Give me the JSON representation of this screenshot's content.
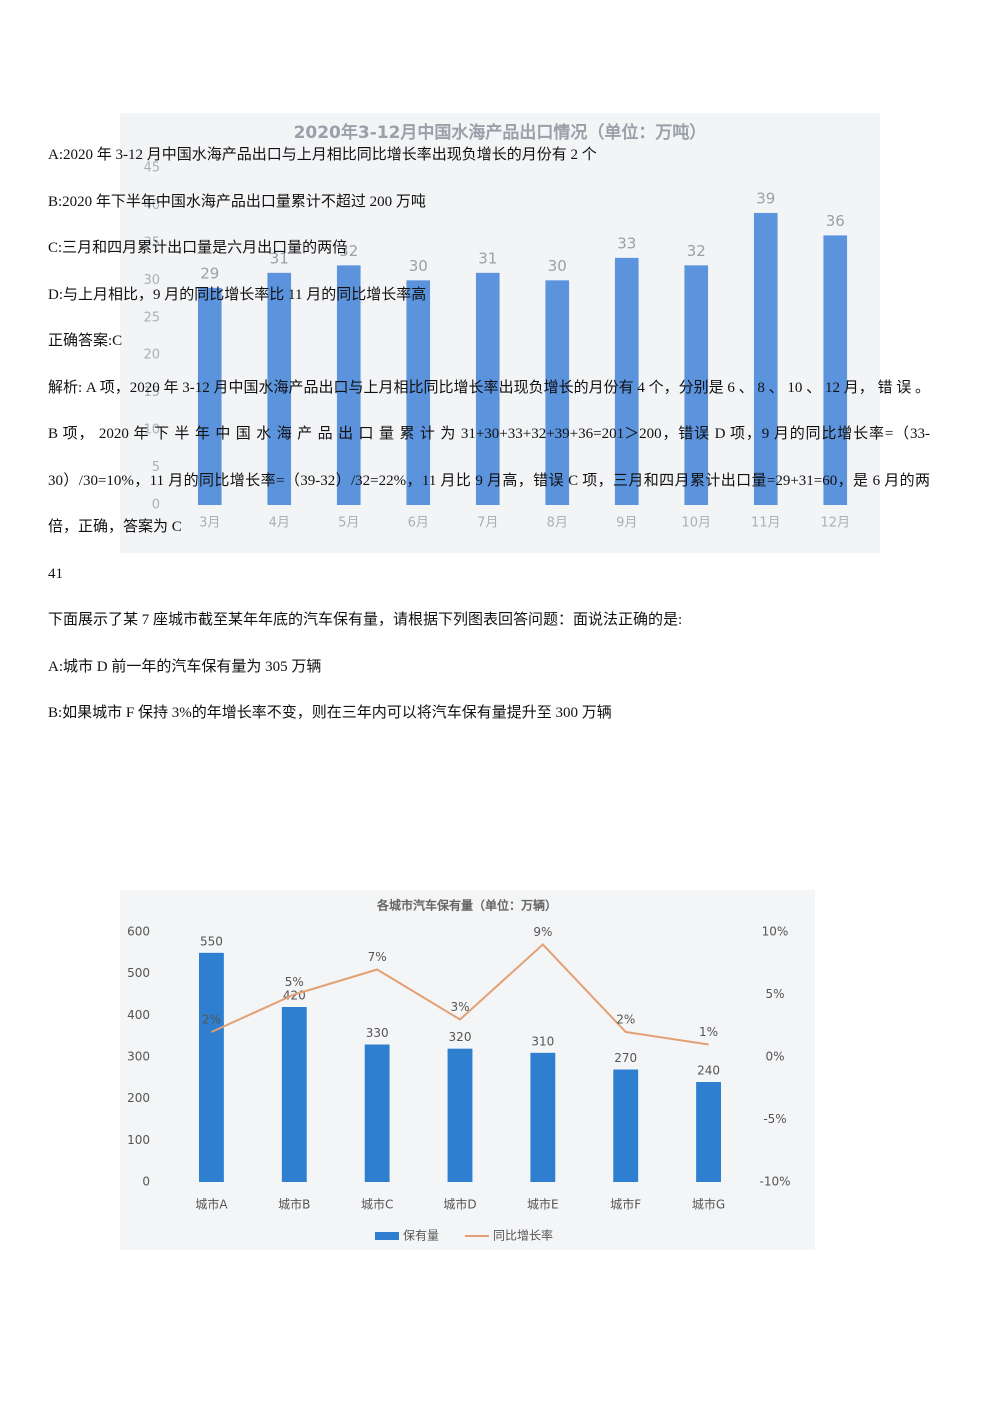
{
  "document": {
    "q1_options": [
      "A:2020 年 3-12 月中国水海产品出口与上月相比同比增长率出现负增长的月份有 2 个",
      "B:2020 年下半年中国水海产品出口量累计不超过 200 万吨",
      "C:三月和四月累计出口量是六月出口量的两倍",
      "D:与上月相比，9 月的同比增长率比 11 月的同比增长率高"
    ],
    "q1_answer": "正确答案:C",
    "q1_analysis": "解析: A 项，2020 年 3-12 月中国水海产品出口与上月相比同比增长率出现负增长的月份有 4 个，分别是 6 、 8 、 10 、 12 月， 错 误 。 B 项， 2020 年 下 半 年 中 国 水 海 产 品 出 口 量 累 计 为 31+30+33+32+39+36=201＞200，错误 D 项，9 月的同比增长率=（33-30）/30=10%，11 月的同比增长率=（39-32）/32=22%，11 月比 9 月高，错误 C 项，三月和四月累计出口量=29+31=60，是 6 月的两倍，正确，答案为 C",
    "q2_number": "41",
    "q2_question": "下面展示了某 7 座城市截至某年年底的汽车保有量，请根据下列图表回答问题：面说法正确的是:",
    "q2_options": [
      "A:城市 D 前一年的汽车保有量为 305 万辆",
      "B:如果城市 F 保持 3%的年增长率不变，则在三年内可以将汽车保有量提升至 300 万辆"
    ]
  },
  "chart_data": [
    {
      "type": "bar",
      "title": "2020年3-12月中国水海产品出口情况（单位：万吨）",
      "categories": [
        "3月",
        "4月",
        "5月",
        "6月",
        "7月",
        "8月",
        "9月",
        "10月",
        "11月",
        "12月"
      ],
      "values": [
        29,
        31,
        32,
        30,
        31,
        30,
        33,
        32,
        39,
        36
      ],
      "color": "#5b93dd",
      "ylim": [
        0,
        45
      ],
      "yticks": [
        0,
        5,
        10,
        15,
        20,
        25,
        30,
        35,
        40,
        45
      ]
    },
    {
      "type": "combo",
      "title": "各城市汽车保有量（单位：万辆）",
      "categories": [
        "城市A",
        "城市B",
        "城市C",
        "城市D",
        "城市E",
        "城市F",
        "城市G"
      ],
      "series": [
        {
          "name": "保有量",
          "color": "#2f7fd0",
          "values": [
            550,
            420,
            330,
            320,
            310,
            270,
            240
          ]
        },
        {
          "name": "同比增长率",
          "color": "#e3a074",
          "axis": "y2",
          "values": [
            2,
            5,
            7,
            3,
            9,
            2,
            1
          ],
          "value_labels": [
            "2%",
            "5%",
            "7%",
            "3%",
            "9%",
            "2%",
            "1%"
          ]
        }
      ],
      "ylim": [
        0,
        600
      ],
      "yticks": [
        0,
        100,
        200,
        300,
        400,
        500,
        600
      ],
      "y2lim": [
        -10,
        10
      ],
      "y2ticks": [
        {
          "value": -10,
          "label": "-10%"
        },
        {
          "value": -5,
          "label": "-5%"
        },
        {
          "value": 0,
          "label": "0%"
        },
        {
          "value": 5,
          "label": "5%"
        },
        {
          "value": 10,
          "label": "10%"
        }
      ],
      "legend": "bottom"
    }
  ]
}
